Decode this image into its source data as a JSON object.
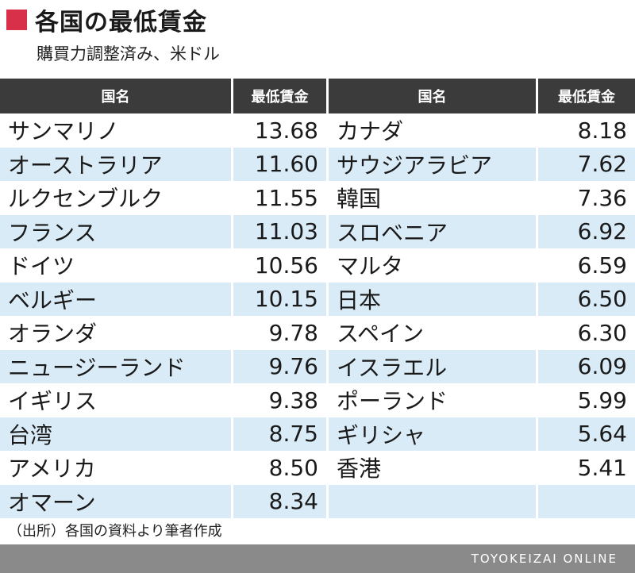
{
  "title": "各国の最低賃金",
  "subtitle": "購買力調整済み、米ドル",
  "headers": [
    "国名",
    "最低賃金",
    "国名",
    "最低賃金"
  ],
  "left": [
    {
      "name": "サンマリノ",
      "value": "13.68"
    },
    {
      "name": "オーストラリア",
      "value": "11.60"
    },
    {
      "name": "ルクセンブルク",
      "value": "11.55"
    },
    {
      "name": "フランス",
      "value": "11.03"
    },
    {
      "name": "ドイツ",
      "value": "10.56"
    },
    {
      "name": "ベルギー",
      "value": "10.15"
    },
    {
      "name": "オランダ",
      "value": "9.78"
    },
    {
      "name": "ニュージーランド",
      "value": "9.76"
    },
    {
      "name": "イギリス",
      "value": "9.38"
    },
    {
      "name": "台湾",
      "value": "8.75"
    },
    {
      "name": "アメリカ",
      "value": "8.50"
    },
    {
      "name": "オマーン",
      "value": "8.34"
    }
  ],
  "right": [
    {
      "name": "カナダ",
      "value": "8.18"
    },
    {
      "name": "サウジアラビア",
      "value": "7.62"
    },
    {
      "name": "韓国",
      "value": "7.36"
    },
    {
      "name": "スロベニア",
      "value": "6.92"
    },
    {
      "name": "マルタ",
      "value": "6.59"
    },
    {
      "name": "日本",
      "value": "6.50"
    },
    {
      "name": "スペイン",
      "value": "6.30"
    },
    {
      "name": "イスラエル",
      "value": "6.09"
    },
    {
      "name": "ポーランド",
      "value": "5.99"
    },
    {
      "name": "ギリシャ",
      "value": "5.64"
    },
    {
      "name": "香港",
      "value": "5.41"
    },
    {
      "name": "",
      "value": ""
    }
  ],
  "source": "（出所）各国の資料より筆者作成",
  "footer": "TOYOKEIZAI ONLINE",
  "colors": {
    "accent": "#d9304a",
    "header_bg": "#3b3b3b",
    "stripe": "#d9ebf7",
    "footer_bg": "#8a8a8a"
  }
}
